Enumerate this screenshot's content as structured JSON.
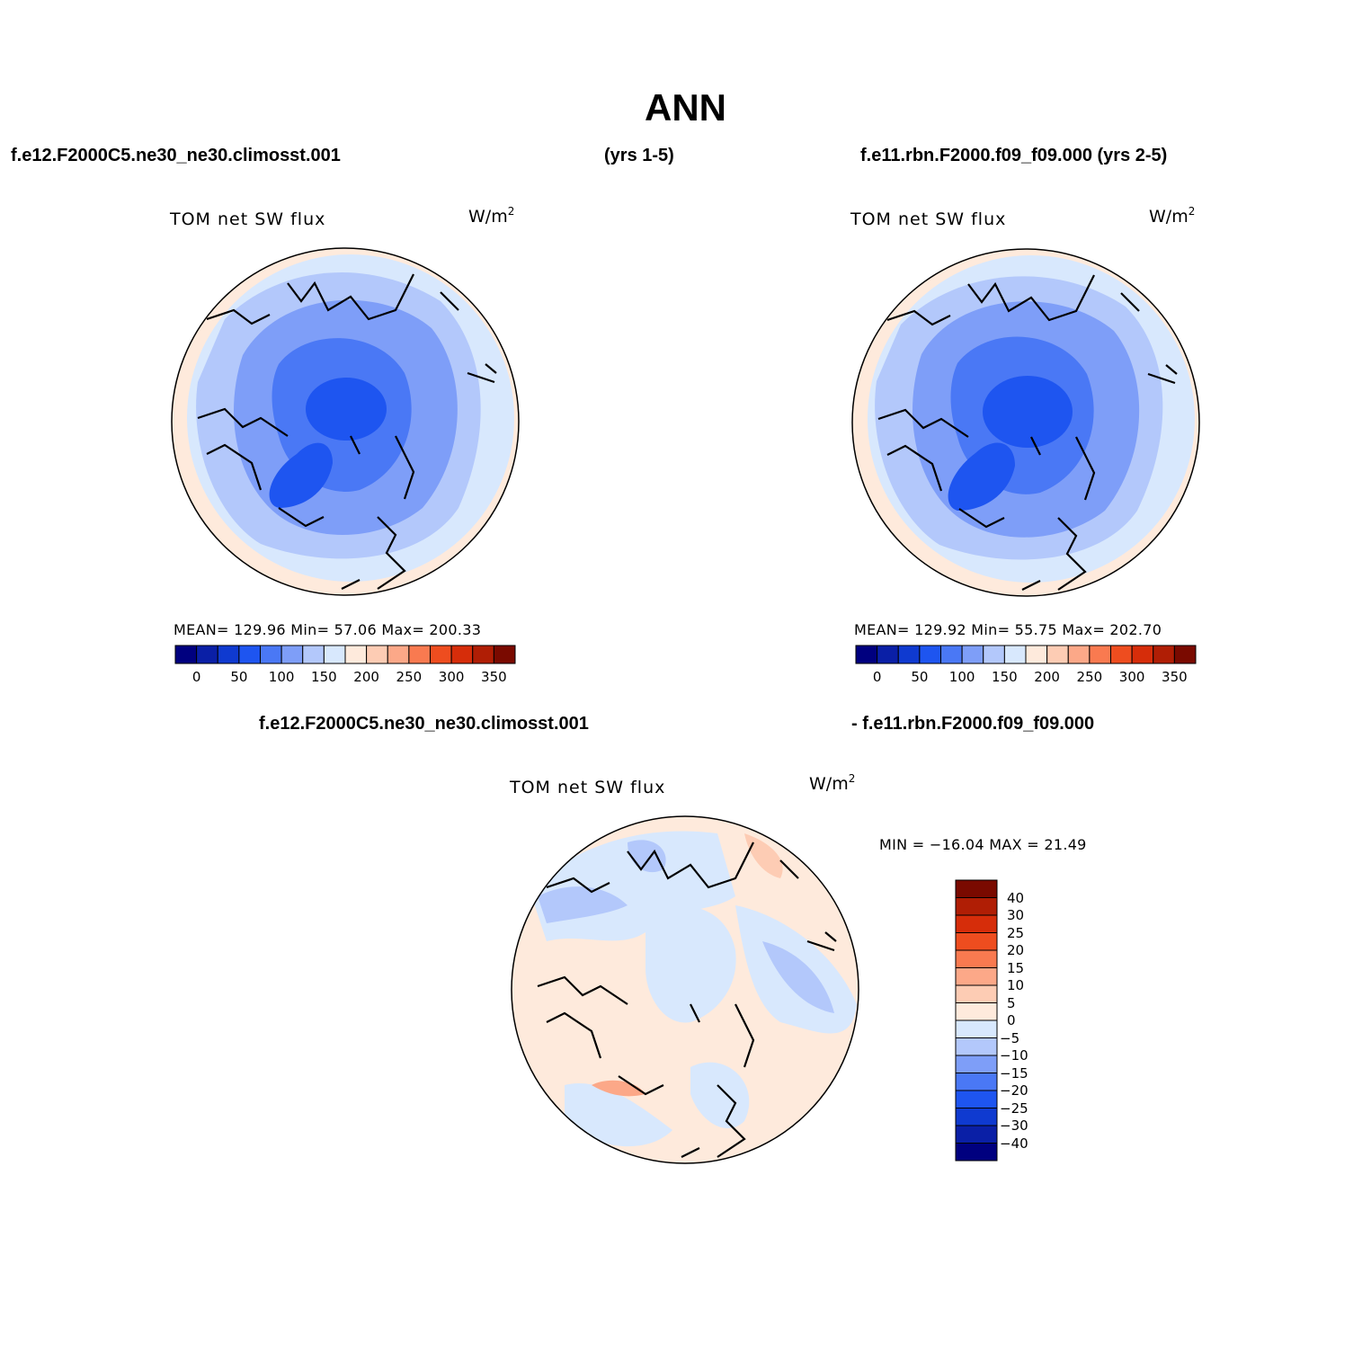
{
  "title": "ANN",
  "header": {
    "left_case": "f.e12.F2000C5.ne30_ne30.climosst.001",
    "left_years": "(yrs 1-5)",
    "right_case": "f.e11.rbn.F2000.f09_f09.000 (yrs 2-5)"
  },
  "diff_header": {
    "left": "f.e12.F2000C5.ne30_ne30.climosst.001",
    "right": "- f.e11.rbn.F2000.f09_f09.000"
  },
  "panels": [
    {
      "variable": "TOM net SW flux",
      "units_base": "W/m",
      "units_exp": "2",
      "stats": "MEAN= 129.96   Min=  57.06   Max= 200.33"
    },
    {
      "variable": "TOM net SW flux",
      "units_base": "W/m",
      "units_exp": "2",
      "stats": "MEAN= 129.92   Min=  55.75   Max= 202.70"
    },
    {
      "variable": "TOM net SW flux",
      "units_base": "W/m",
      "units_exp": "2",
      "stats": "MIN = −16.04 MAX =  21.49"
    }
  ],
  "colorbar_abs": {
    "colors": [
      "#00007f",
      "#0a1fa6",
      "#0f3ad0",
      "#1e55f0",
      "#4a78f5",
      "#7e9ef8",
      "#b3c8fb",
      "#d8e8fd",
      "#feeadc",
      "#fdccb4",
      "#fca888",
      "#f97a50",
      "#ee4d1f",
      "#d62d0a",
      "#b01e05",
      "#7a0a00"
    ],
    "labels": [
      "0",
      "50",
      "100",
      "150",
      "200",
      "250",
      "300",
      "350"
    ]
  },
  "colorbar_diff": {
    "colors": [
      "#00007f",
      "#0a1fa6",
      "#0f3ad0",
      "#1e55f0",
      "#4a78f5",
      "#7e9ef8",
      "#b3c8fb",
      "#d8e8fd",
      "#feeadc",
      "#fdccb4",
      "#fca888",
      "#f97a50",
      "#ee4d1f",
      "#d62d0a",
      "#b01e05",
      "#7a0a00"
    ],
    "labels": [
      "40",
      "30",
      "25",
      "20",
      "15",
      "10",
      "5",
      "0",
      "−5",
      "−10",
      "−15",
      "−20",
      "−25",
      "−30",
      "−40"
    ]
  },
  "map_colors": {
    "outer": "#d8e8fd",
    "rim": "#feeadc",
    "mid": "#b3c8fb",
    "inner": "#7e9ef8",
    "core": "#4a78f5",
    "deep": "#1e55f0"
  }
}
